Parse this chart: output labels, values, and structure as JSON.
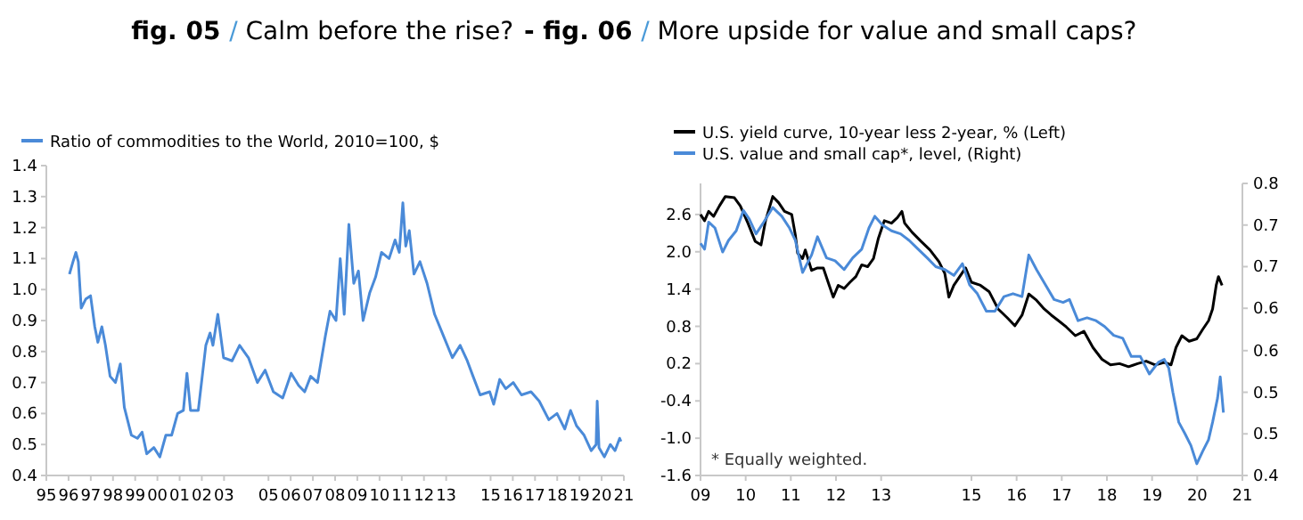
{
  "chart_data": [
    {
      "type": "line",
      "title": "fig. 05 / Calm before the rise?",
      "legend": "top left",
      "xlim": [
        1995,
        2021
      ],
      "ylim": [
        0.4,
        1.4
      ],
      "xticks": [
        {
          "value": 1995,
          "label": "95"
        },
        {
          "value": 1996,
          "label": "96"
        },
        {
          "value": 1997,
          "label": "97"
        },
        {
          "value": 1998,
          "label": "98"
        },
        {
          "value": 1999,
          "label": "99"
        },
        {
          "value": 2000,
          "label": "00"
        },
        {
          "value": 2001,
          "label": "01"
        },
        {
          "value": 2002,
          "label": "02"
        },
        {
          "value": 2003,
          "label": "03"
        },
        {
          "value": 2005,
          "label": "05"
        },
        {
          "value": 2006,
          "label": "06"
        },
        {
          "value": 2007,
          "label": "07"
        },
        {
          "value": 2008,
          "label": "08"
        },
        {
          "value": 2009,
          "label": "09"
        },
        {
          "value": 2010,
          "label": "10"
        },
        {
          "value": 2011,
          "label": "11"
        },
        {
          "value": 2012,
          "label": "12"
        },
        {
          "value": 2013,
          "label": "13"
        },
        {
          "value": 2015,
          "label": "15"
        },
        {
          "value": 2016,
          "label": "16"
        },
        {
          "value": 2017,
          "label": "17"
        },
        {
          "value": 2018,
          "label": "18"
        },
        {
          "value": 2019,
          "label": "19"
        },
        {
          "value": 2020,
          "label": "20"
        },
        {
          "value": 2021,
          "label": "21"
        }
      ],
      "yticks": [
        {
          "value": 0.4,
          "label": "0.4"
        },
        {
          "value": 0.5,
          "label": "0.5"
        },
        {
          "value": 0.6,
          "label": "0.6"
        },
        {
          "value": 0.7,
          "label": "0.7"
        },
        {
          "value": 0.8,
          "label": "0.8"
        },
        {
          "value": 0.9,
          "label": "0.9"
        },
        {
          "value": 1.0,
          "label": "1.0"
        },
        {
          "value": 1.1,
          "label": "1.1"
        },
        {
          "value": 1.2,
          "label": "1.2"
        },
        {
          "value": 1.3,
          "label": "1.3"
        },
        {
          "value": 1.4,
          "label": "1.4"
        }
      ],
      "series": [
        {
          "name": "Ratio of commodities to the World, 2010=100, $",
          "color": "#4a8ad8",
          "x": [
            1996.04,
            1996.2,
            1996.33,
            1996.44,
            1996.57,
            1996.78,
            1996.99,
            1997.18,
            1997.32,
            1997.5,
            1997.66,
            1997.87,
            1998.11,
            1998.33,
            1998.51,
            1998.83,
            1999.1,
            1999.31,
            1999.52,
            1999.84,
            2000.11,
            2000.38,
            2000.64,
            2000.91,
            2001.17,
            2001.33,
            2001.49,
            2001.84,
            2002.18,
            2002.37,
            2002.5,
            2002.72,
            2002.98,
            2003.36,
            2003.7,
            2004.1,
            2004.5,
            2004.85,
            2005.22,
            2005.64,
            2006.02,
            2006.36,
            2006.63,
            2006.9,
            2007.21,
            2007.56,
            2007.77,
            2008.04,
            2008.23,
            2008.41,
            2008.62,
            2008.84,
            2009.05,
            2009.26,
            2009.56,
            2009.82,
            2010.09,
            2010.43,
            2010.7,
            2010.89,
            2011.05,
            2011.18,
            2011.34,
            2011.55,
            2011.82,
            2012.14,
            2012.48,
            2012.88,
            2013.28,
            2013.63,
            2013.95,
            2014.21,
            2014.53,
            2014.96,
            2015.14,
            2015.41,
            2015.68,
            2016.02,
            2016.39,
            2016.82,
            2017.19,
            2017.62,
            2017.99,
            2018.34,
            2018.6,
            2018.87,
            2019.21,
            2019.53,
            2019.75,
            2019.8,
            2019.88,
            2020.12,
            2020.39,
            2020.6,
            2020.81,
            2020.87
          ],
          "values": [
            1.05,
            1.09,
            1.12,
            1.09,
            0.94,
            0.97,
            0.98,
            0.88,
            0.83,
            0.88,
            0.82,
            0.72,
            0.7,
            0.76,
            0.62,
            0.53,
            0.52,
            0.54,
            0.47,
            0.49,
            0.46,
            0.53,
            0.53,
            0.6,
            0.61,
            0.73,
            0.61,
            0.61,
            0.82,
            0.86,
            0.82,
            0.92,
            0.78,
            0.77,
            0.82,
            0.78,
            0.7,
            0.74,
            0.67,
            0.65,
            0.73,
            0.69,
            0.67,
            0.72,
            0.7,
            0.85,
            0.93,
            0.9,
            1.1,
            0.92,
            1.21,
            1.02,
            1.06,
            0.9,
            0.99,
            1.04,
            1.12,
            1.1,
            1.16,
            1.12,
            1.28,
            1.14,
            1.19,
            1.05,
            1.09,
            1.02,
            0.92,
            0.85,
            0.78,
            0.82,
            0.77,
            0.72,
            0.66,
            0.67,
            0.63,
            0.71,
            0.68,
            0.7,
            0.66,
            0.67,
            0.64,
            0.58,
            0.6,
            0.55,
            0.61,
            0.56,
            0.53,
            0.48,
            0.5,
            0.64,
            0.49,
            0.46,
            0.5,
            0.48,
            0.52,
            0.51
          ]
        }
      ]
    },
    {
      "type": "line",
      "title": "- fig. 06 / More upside for value and small caps?",
      "legend": "top left",
      "xlim": [
        2009,
        2021
      ],
      "ylim": [
        -1.6,
        3.1
      ],
      "y2lim": [
        0.4,
        0.8
      ],
      "xticks": [
        {
          "value": 2009,
          "label": "09"
        },
        {
          "value": 2010,
          "label": "10"
        },
        {
          "value": 2011,
          "label": "11"
        },
        {
          "value": 2012,
          "label": "12"
        },
        {
          "value": 2013,
          "label": "13"
        },
        {
          "value": 2015,
          "label": "15"
        },
        {
          "value": 2016,
          "label": "16"
        },
        {
          "value": 2017,
          "label": "17"
        },
        {
          "value": 2018,
          "label": "18"
        },
        {
          "value": 2019,
          "label": "19"
        },
        {
          "value": 2020,
          "label": "20"
        },
        {
          "value": 2021,
          "label": "21"
        }
      ],
      "yticks": [
        {
          "value": 2.6,
          "label": "2.6"
        },
        {
          "value": 2.0,
          "label": "2.0"
        },
        {
          "value": 1.4,
          "label": "1.4"
        },
        {
          "value": 0.8,
          "label": "0.8"
        },
        {
          "value": 0.2,
          "label": "0.2"
        },
        {
          "value": -0.4,
          "label": "-0.4"
        },
        {
          "value": -1.0,
          "label": "-1.0"
        },
        {
          "value": -1.6,
          "label": "-1.6"
        }
      ],
      "y2ticks": [
        {
          "value": 0.8,
          "label": "0.8"
        },
        {
          "value": 0.743,
          "label": "0.7"
        },
        {
          "value": 0.686,
          "label": "0.7"
        },
        {
          "value": 0.629,
          "label": "0.6"
        },
        {
          "value": 0.571,
          "label": "0.6"
        },
        {
          "value": 0.514,
          "label": "0.5"
        },
        {
          "value": 0.457,
          "label": "0.5"
        },
        {
          "value": 0.4,
          "label": "0.4"
        }
      ],
      "annotations": [
        "* Equally weighted."
      ],
      "series": [
        {
          "name": "U.S. yield curve, 10-year less 2-year, % (Left)",
          "color": "#000000",
          "x": [
            2009.0,
            2009.09,
            2009.18,
            2009.29,
            2009.42,
            2009.55,
            2009.75,
            2009.88,
            2010.05,
            2010.21,
            2010.34,
            2010.44,
            2010.6,
            2010.73,
            2010.86,
            2011.02,
            2011.1,
            2011.15,
            2011.26,
            2011.32,
            2011.46,
            2011.59,
            2011.72,
            2011.85,
            2011.94,
            2012.05,
            2012.18,
            2012.31,
            2012.44,
            2012.57,
            2012.7,
            2012.83,
            2012.94,
            2013.07,
            2013.23,
            2013.36,
            2013.46,
            2013.52,
            2013.69,
            2013.88,
            2014.08,
            2014.28,
            2014.41,
            2014.5,
            2014.61,
            2014.74,
            2014.87,
            2015.0,
            2015.2,
            2015.39,
            2015.59,
            2015.79,
            2015.96,
            2016.12,
            2016.27,
            2016.44,
            2016.61,
            2016.77,
            2016.93,
            2017.1,
            2017.3,
            2017.49,
            2017.69,
            2017.89,
            2018.08,
            2018.28,
            2018.48,
            2018.68,
            2018.87,
            2019.07,
            2019.27,
            2019.42,
            2019.53,
            2019.66,
            2019.82,
            2019.99,
            2020.12,
            2020.25,
            2020.34,
            2020.42,
            2020.47,
            2020.55
          ],
          "values": [
            2.6,
            2.5,
            2.65,
            2.57,
            2.74,
            2.89,
            2.87,
            2.74,
            2.46,
            2.17,
            2.11,
            2.5,
            2.89,
            2.79,
            2.65,
            2.6,
            2.27,
            1.98,
            1.89,
            2.03,
            1.7,
            1.74,
            1.74,
            1.46,
            1.27,
            1.46,
            1.41,
            1.51,
            1.6,
            1.79,
            1.76,
            1.89,
            2.22,
            2.5,
            2.46,
            2.55,
            2.65,
            2.46,
            2.31,
            2.17,
            2.03,
            1.84,
            1.65,
            1.27,
            1.46,
            1.6,
            1.74,
            1.51,
            1.46,
            1.36,
            1.08,
            0.94,
            0.81,
            0.98,
            1.32,
            1.22,
            1.08,
            0.98,
            0.89,
            0.79,
            0.65,
            0.72,
            0.46,
            0.27,
            0.18,
            0.2,
            0.15,
            0.2,
            0.24,
            0.18,
            0.22,
            0.18,
            0.46,
            0.65,
            0.56,
            0.6,
            0.75,
            0.89,
            1.08,
            1.46,
            1.6,
            1.46
          ]
        },
        {
          "name": "U.S. value and small cap*, level, (Right)",
          "color": "#4a8ad8",
          "axis": "y2",
          "x": [
            2009.0,
            2009.09,
            2009.18,
            2009.32,
            2009.49,
            2009.62,
            2009.79,
            2009.95,
            2010.08,
            2010.23,
            2010.4,
            2010.6,
            2010.8,
            2010.97,
            2011.1,
            2011.26,
            2011.46,
            2011.59,
            2011.79,
            2011.98,
            2012.18,
            2012.37,
            2012.57,
            2012.73,
            2012.86,
            2013.03,
            2013.23,
            2013.43,
            2013.62,
            2013.82,
            2014.02,
            2014.21,
            2014.41,
            2014.61,
            2014.8,
            2014.96,
            2015.13,
            2015.33,
            2015.52,
            2015.72,
            2015.92,
            2016.12,
            2016.27,
            2016.44,
            2016.64,
            2016.83,
            2017.03,
            2017.17,
            2017.36,
            2017.56,
            2017.76,
            2017.95,
            2018.15,
            2018.35,
            2018.54,
            2018.74,
            2018.94,
            2019.14,
            2019.27,
            2019.37,
            2019.46,
            2019.59,
            2019.73,
            2019.86,
            2019.99,
            2020.12,
            2020.25,
            2020.34,
            2020.45,
            2020.51,
            2020.58
          ],
          "values": [
            0.718,
            0.71,
            0.747,
            0.739,
            0.706,
            0.722,
            0.735,
            0.763,
            0.751,
            0.731,
            0.747,
            0.767,
            0.755,
            0.739,
            0.722,
            0.678,
            0.702,
            0.727,
            0.698,
            0.694,
            0.682,
            0.698,
            0.71,
            0.739,
            0.755,
            0.743,
            0.735,
            0.731,
            0.722,
            0.71,
            0.698,
            0.686,
            0.682,
            0.674,
            0.69,
            0.661,
            0.649,
            0.625,
            0.625,
            0.645,
            0.649,
            0.645,
            0.702,
            0.682,
            0.661,
            0.641,
            0.637,
            0.641,
            0.612,
            0.616,
            0.612,
            0.604,
            0.592,
            0.588,
            0.563,
            0.563,
            0.539,
            0.555,
            0.559,
            0.547,
            0.514,
            0.473,
            0.457,
            0.441,
            0.416,
            0.433,
            0.449,
            0.473,
            0.506,
            0.535,
            0.486
          ]
        }
      ]
    }
  ]
}
